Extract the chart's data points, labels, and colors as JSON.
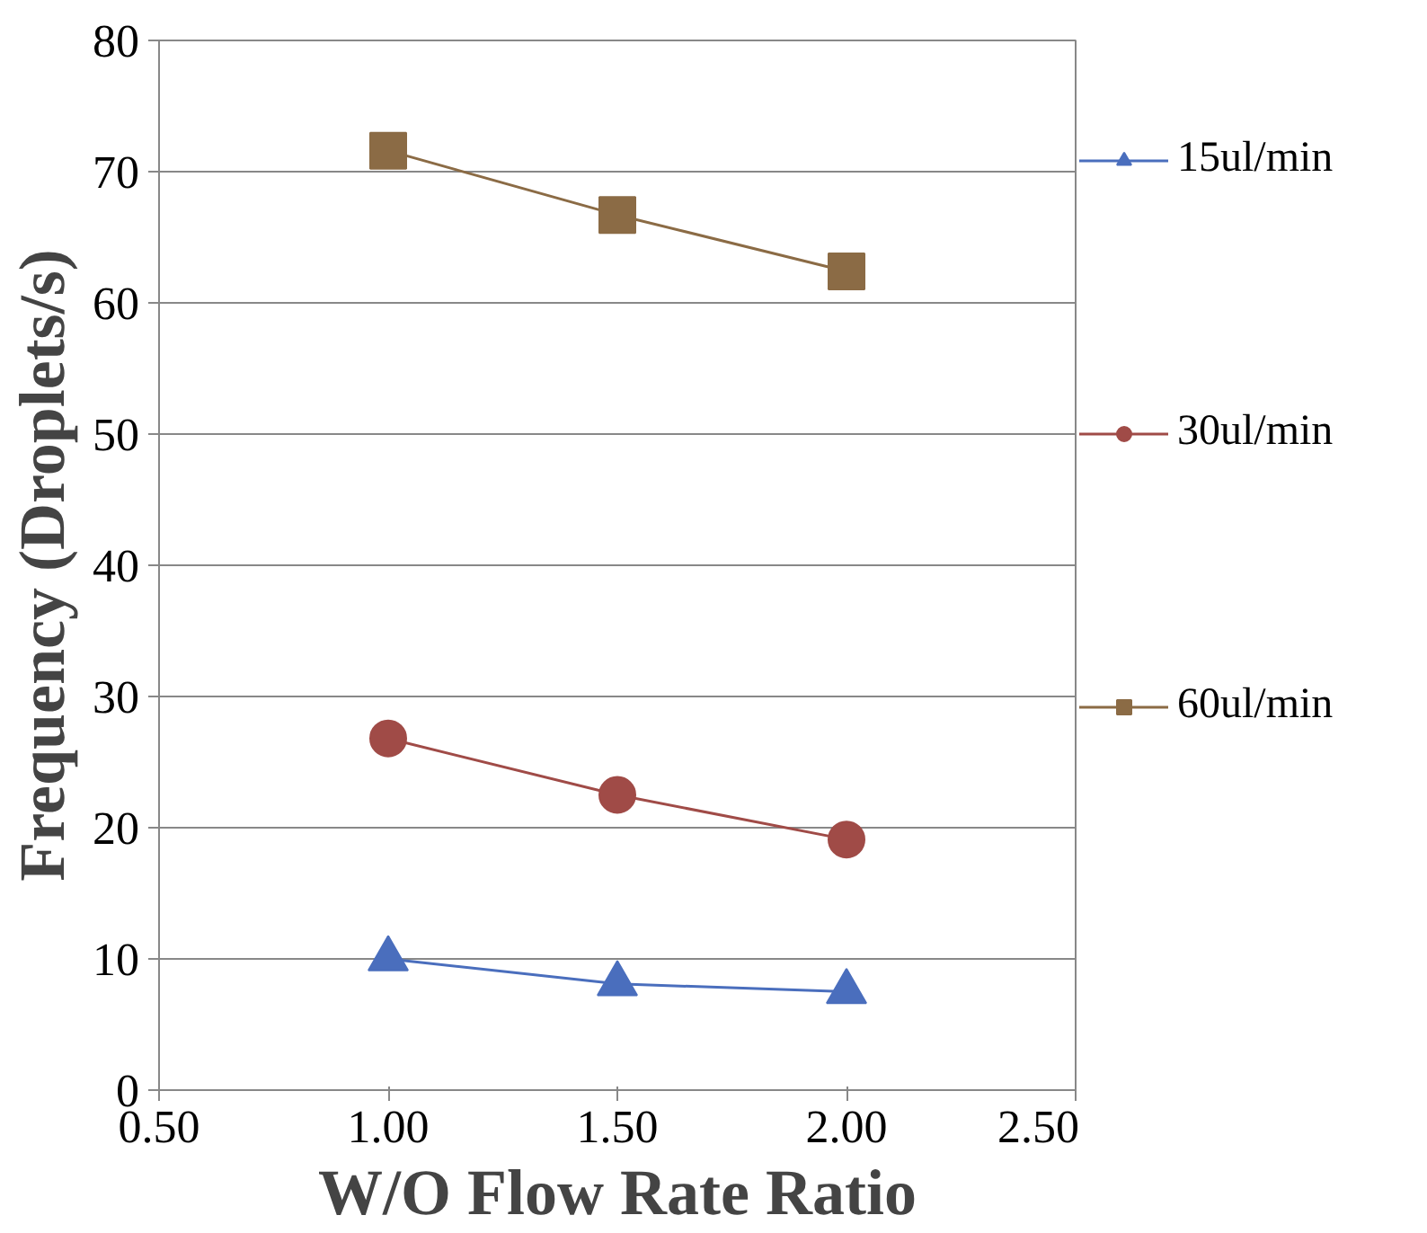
{
  "chart_data": {
    "type": "line",
    "xlabel": "W/O Flow Rate Ratio",
    "ylabel": "Frequency (Droplets/s)",
    "x": [
      1.0,
      1.5,
      2.0
    ],
    "series": [
      {
        "name": "15ul/min",
        "color": "#4a6ebd",
        "marker": "triangle",
        "values": [
          10.0,
          8.1,
          7.5
        ]
      },
      {
        "name": "30ul/min",
        "color": "#a04b47",
        "marker": "circle",
        "values": [
          26.8,
          22.5,
          19.1
        ]
      },
      {
        "name": "60ul/min",
        "color": "#8b6b45",
        "marker": "square",
        "values": [
          71.6,
          66.7,
          62.4
        ]
      }
    ],
    "xlim": [
      0.5,
      2.5
    ],
    "xticks": [
      {
        "value": 0.5,
        "label": "0.50"
      },
      {
        "value": 1.0,
        "label": "1.00"
      },
      {
        "value": 1.5,
        "label": "1.50"
      },
      {
        "value": 2.0,
        "label": "2.00"
      },
      {
        "value": 2.5,
        "label": "2.50"
      }
    ],
    "ylim": [
      0,
      80
    ],
    "yticks": [
      0,
      10,
      20,
      30,
      40,
      50,
      60,
      70,
      80
    ],
    "grid": "y",
    "legend": "right",
    "line_style": "solid"
  }
}
